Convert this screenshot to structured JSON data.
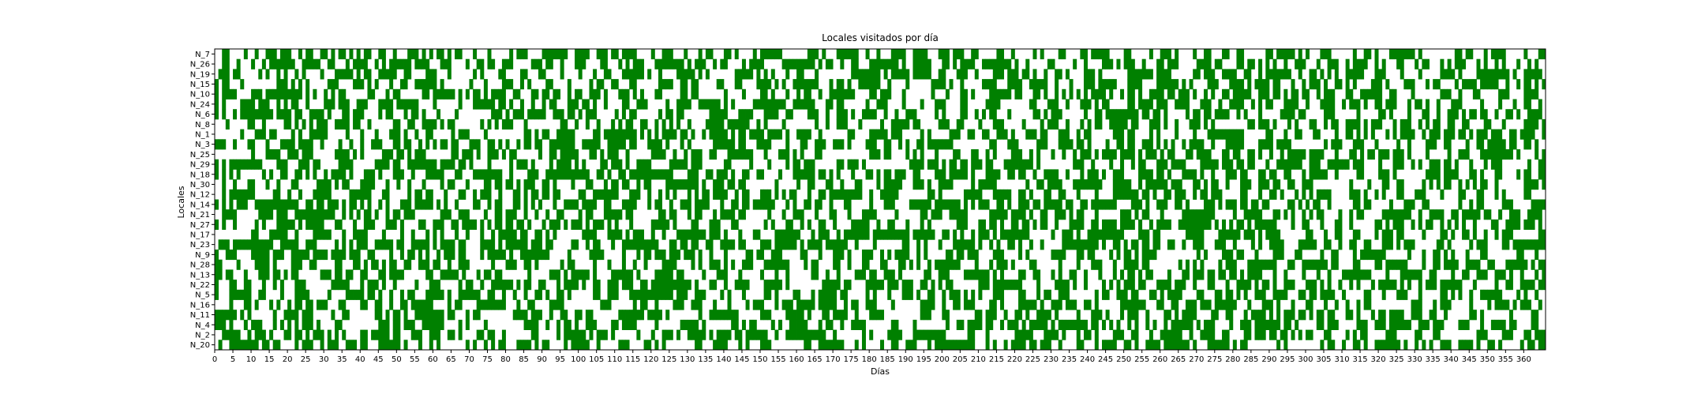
{
  "chart_data": {
    "type": "heatmap",
    "title": "Locales visitados por día",
    "xlabel": "Días",
    "ylabel": "Locales",
    "visited_color": "#008000",
    "empty_color": "#ffffff",
    "x_range": [
      0,
      366
    ],
    "x_ticks": [
      0,
      5,
      10,
      15,
      20,
      25,
      30,
      35,
      40,
      45,
      50,
      55,
      60,
      65,
      70,
      75,
      80,
      85,
      90,
      95,
      100,
      105,
      110,
      115,
      120,
      125,
      130,
      135,
      140,
      145,
      150,
      155,
      160,
      165,
      170,
      175,
      180,
      185,
      190,
      195,
      200,
      205,
      210,
      215,
      220,
      225,
      230,
      235,
      240,
      245,
      250,
      255,
      260,
      265,
      270,
      275,
      280,
      285,
      290,
      295,
      300,
      305,
      310,
      315,
      320,
      325,
      330,
      335,
      340,
      345,
      350,
      355,
      360
    ],
    "locales": [
      "N_7",
      "N_26",
      "N_19",
      "N_15",
      "N_10",
      "N_24",
      "N_6",
      "N_8",
      "N_1",
      "N_3",
      "N_25",
      "N_29",
      "N_18",
      "N_30",
      "N_12",
      "N_14",
      "N_21",
      "N_27",
      "N_17",
      "N_23",
      "N_9",
      "N_28",
      "N_13",
      "N_22",
      "N_5",
      "N_16",
      "N_11",
      "N_4",
      "N_2",
      "N_20"
    ],
    "grid": false
  }
}
